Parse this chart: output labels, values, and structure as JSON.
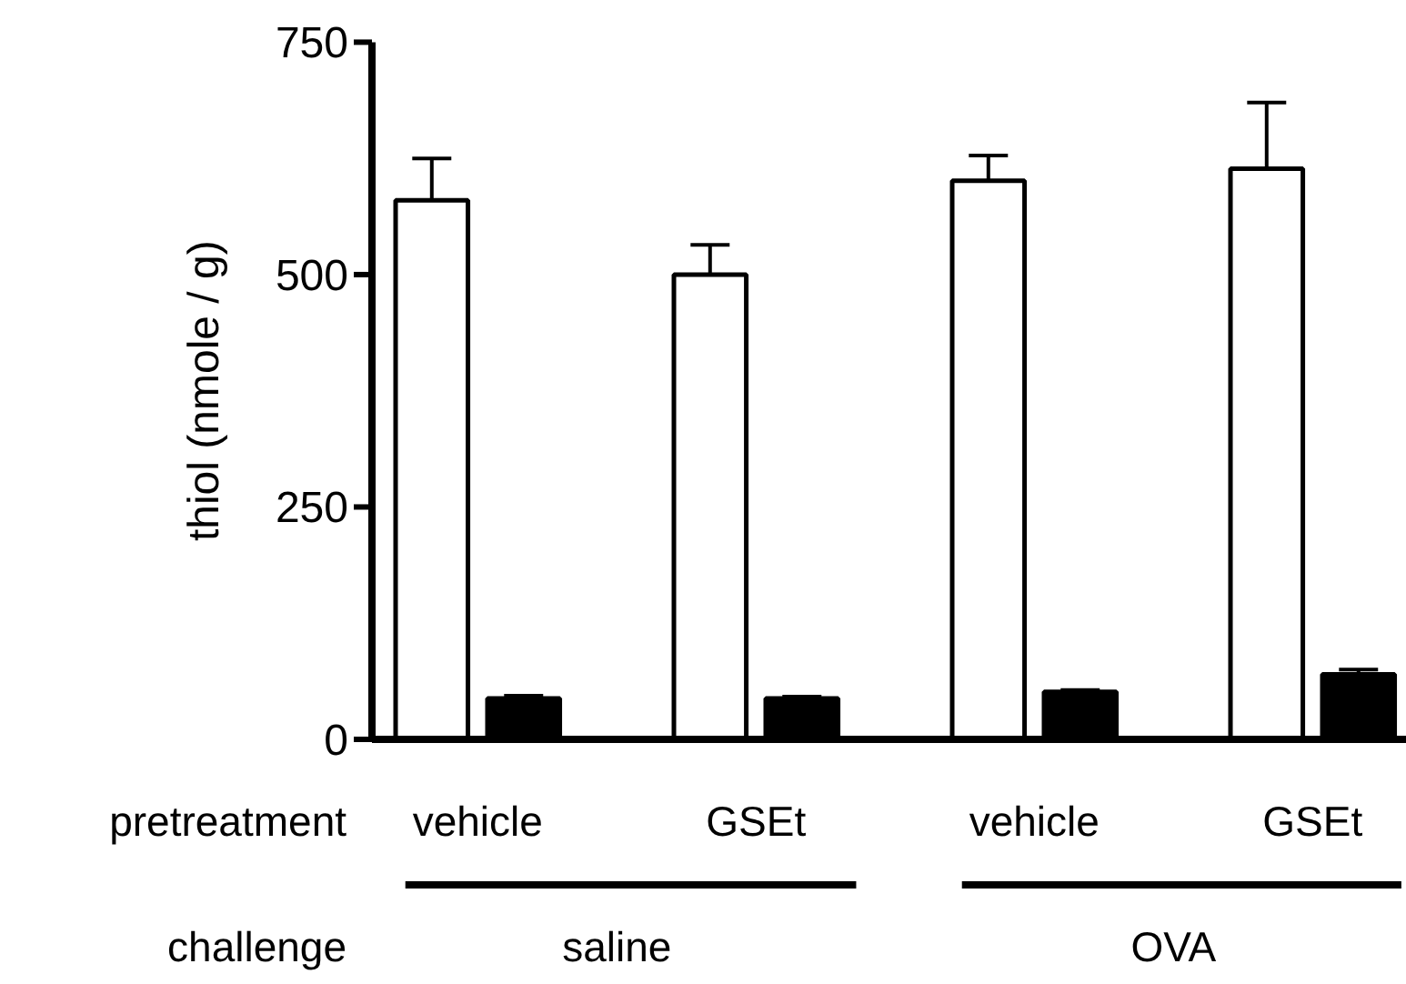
{
  "chart_data": {
    "type": "bar",
    "ylabel": "thiol (nmole / g)",
    "categories": [
      "vehicle",
      "GSEt",
      "vehicle",
      "GSEt"
    ],
    "series": [
      {
        "color": "#ffffff",
        "values": [
          580,
          500,
          601,
          614
        ],
        "errors": [
          [
            580,
            625
          ],
          [
            500,
            532
          ],
          [
            601,
            628
          ],
          [
            614,
            685
          ]
        ]
      },
      {
        "color": "#000000",
        "values": [
          44,
          44,
          51,
          70
        ],
        "errors": [
          [
            44,
            47
          ],
          [
            44,
            46
          ],
          [
            51,
            53
          ],
          [
            70,
            75
          ]
        ]
      }
    ],
    "ylim": [
      0,
      750
    ],
    "yticks": [
      0,
      250,
      500,
      750
    ],
    "annotations": [
      "pretreatment",
      "challenge",
      "saline",
      "OVA"
    ]
  }
}
